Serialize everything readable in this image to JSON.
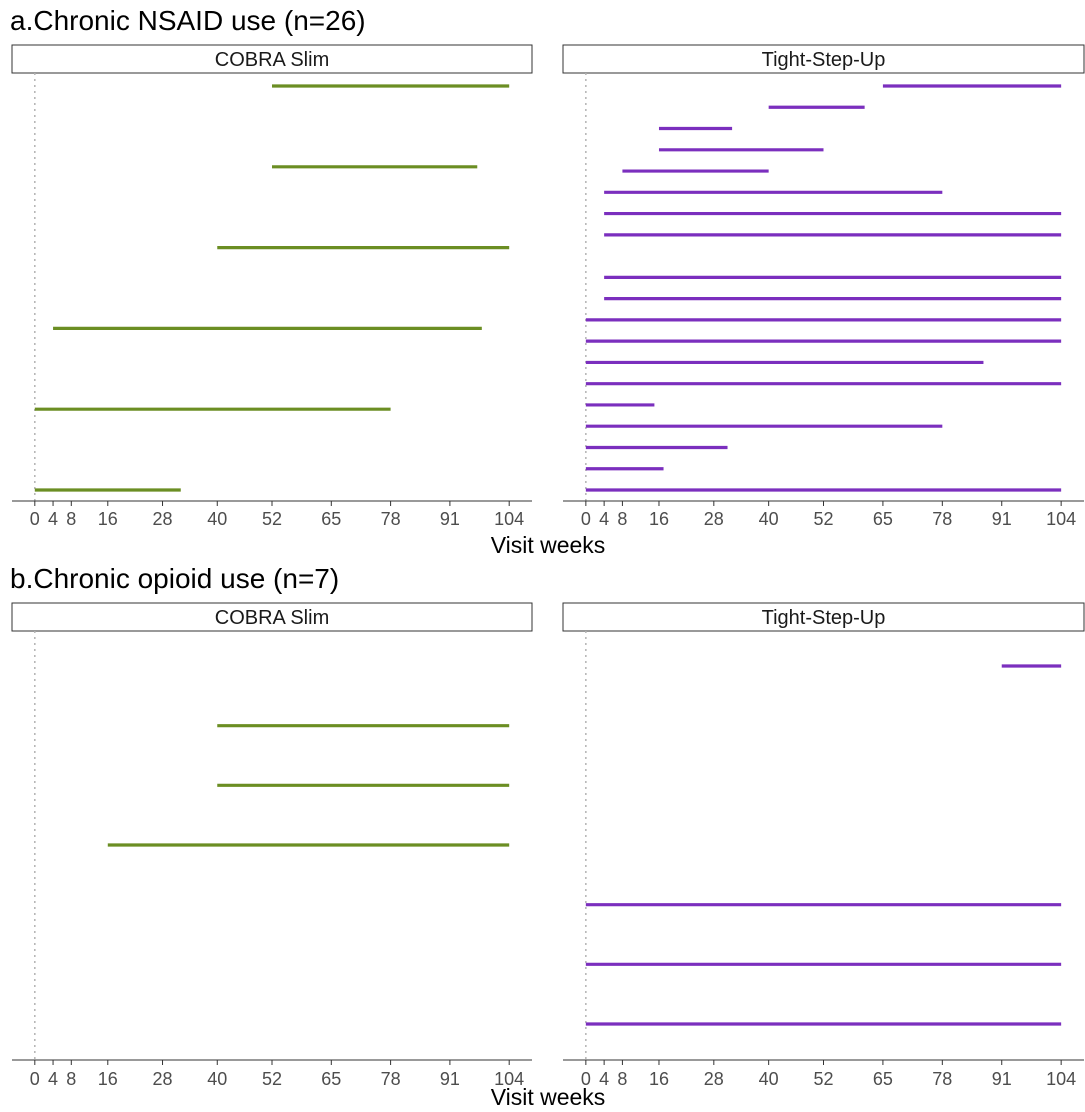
{
  "chart_data": [
    {
      "type": "timeline",
      "title": "a.Chronic NSAID use (n=26)",
      "xlabel": "Visit weeks",
      "ylabel": "",
      "xticks": [
        0,
        4,
        8,
        16,
        28,
        40,
        52,
        65,
        78,
        91,
        104
      ],
      "xlim": [
        -5,
        109
      ],
      "grid": false,
      "reference_line": 0,
      "panels": [
        {
          "strip": "COBRA Slim",
          "color": "#6B8E23",
          "rows": 6,
          "segments": [
            {
              "row": 1,
              "start": 52,
              "end": 104
            },
            {
              "row": 2,
              "start": 52,
              "end": 97
            },
            {
              "row": 3,
              "start": 40,
              "end": 104
            },
            {
              "row": 4,
              "start": 4,
              "end": 98
            },
            {
              "row": 5,
              "start": 0,
              "end": 78
            },
            {
              "row": 6,
              "start": 0,
              "end": 32
            }
          ]
        },
        {
          "strip": "Tight-Step-Up",
          "color": "#7B2FBE",
          "rows": 20,
          "segments": [
            {
              "row": 1,
              "start": 65,
              "end": 104
            },
            {
              "row": 2,
              "start": 40,
              "end": 61
            },
            {
              "row": 3,
              "start": 16,
              "end": 32
            },
            {
              "row": 4,
              "start": 16,
              "end": 52
            },
            {
              "row": 5,
              "start": 8,
              "end": 40
            },
            {
              "row": 6,
              "start": 4,
              "end": 78
            },
            {
              "row": 7,
              "start": 4,
              "end": 104
            },
            {
              "row": 8,
              "start": 4,
              "end": 104
            },
            {
              "row": 10,
              "start": 4,
              "end": 104
            },
            {
              "row": 11,
              "start": 4,
              "end": 104
            },
            {
              "row": 12,
              "start": 0,
              "end": 104
            },
            {
              "row": 13,
              "start": 0,
              "end": 104
            },
            {
              "row": 14,
              "start": 0,
              "end": 87
            },
            {
              "row": 15,
              "start": 0,
              "end": 104
            },
            {
              "row": 16,
              "start": 0,
              "end": 15
            },
            {
              "row": 17,
              "start": 0,
              "end": 78
            },
            {
              "row": 18,
              "start": 0,
              "end": 31
            },
            {
              "row": 19,
              "start": 0,
              "end": 17
            },
            {
              "row": 20,
              "start": 0,
              "end": 104
            }
          ]
        }
      ]
    },
    {
      "type": "timeline",
      "title": "b.Chronic opioid use (n=7)",
      "xlabel": "Visit weeks",
      "ylabel": "",
      "xticks": [
        0,
        4,
        8,
        16,
        28,
        40,
        52,
        65,
        78,
        91,
        104
      ],
      "xlim": [
        -5,
        109
      ],
      "grid": false,
      "reference_line": 0,
      "panels": [
        {
          "strip": "COBRA Slim",
          "color": "#6B8E23",
          "rows": 7,
          "segments": [
            {
              "row": 2,
              "start": 40,
              "end": 104
            },
            {
              "row": 3,
              "start": 40,
              "end": 104
            },
            {
              "row": 4,
              "start": 16,
              "end": 104
            }
          ]
        },
        {
          "strip": "Tight-Step-Up",
          "color": "#7B2FBE",
          "rows": 7,
          "segments": [
            {
              "row": 1,
              "start": 91,
              "end": 104
            },
            {
              "row": 5,
              "start": 0,
              "end": 104
            },
            {
              "row": 6,
              "start": 0,
              "end": 104
            },
            {
              "row": 7,
              "start": 0,
              "end": 104
            }
          ]
        }
      ]
    }
  ]
}
